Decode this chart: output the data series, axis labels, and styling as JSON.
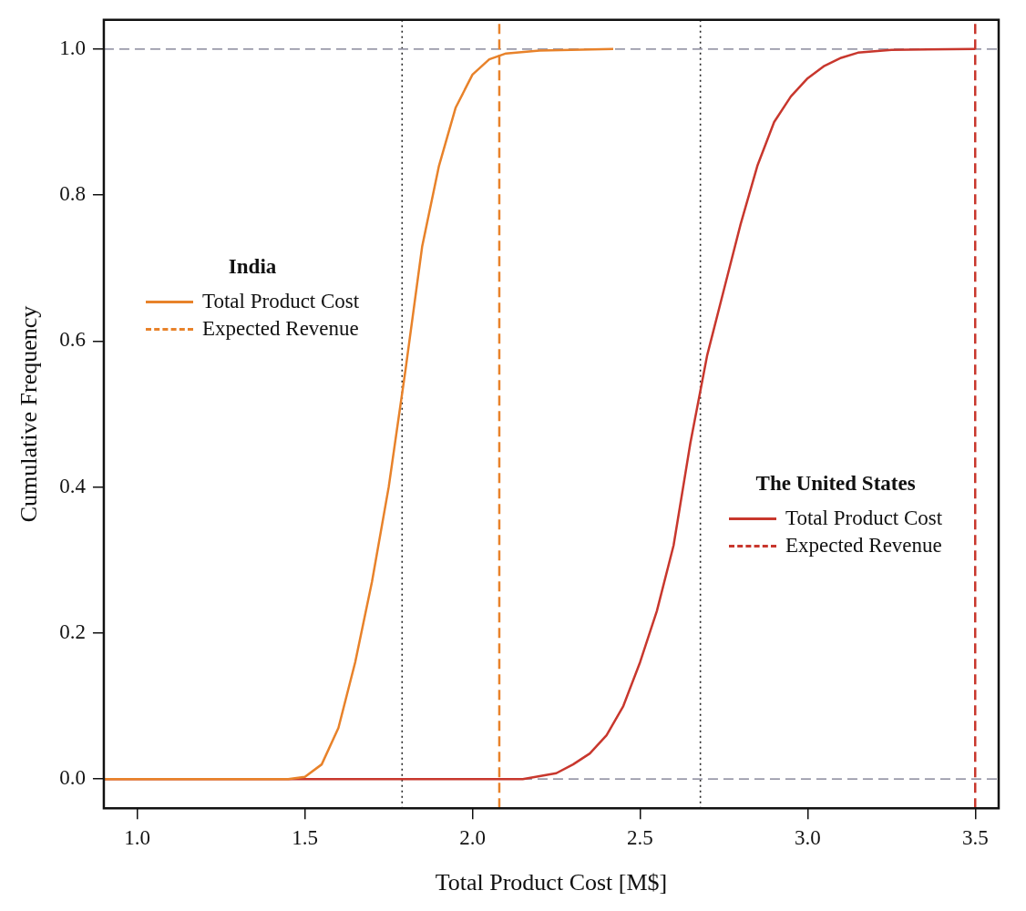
{
  "chart_data": {
    "type": "line",
    "xlabel": "Total Product Cost [M$]",
    "ylabel": "Cumulative Frequency",
    "xlim": [
      0.9,
      3.57
    ],
    "xticks": [
      {
        "value": 1,
        "label": "1.0"
      },
      1.5,
      {
        "value": 2,
        "label": "2.0"
      },
      2.5,
      {
        "value": 3,
        "label": "3.0"
      },
      3.5
    ],
    "ylim": [
      -0.04,
      1.04
    ],
    "yticks": [
      {
        "value": 0,
        "label": "0.0"
      },
      0.2,
      0.4,
      0.6,
      0.8,
      {
        "value": 1,
        "label": "1.0"
      }
    ],
    "grid": false,
    "legend": "center left",
    "marker": "none",
    "annotations": [
      "India",
      "The United States"
    ],
    "series": [
      {
        "name": "Total Product Cost",
        "color": "#e8822a",
        "line_style": "solid",
        "x": [
          0.9,
          1.45,
          1.5,
          1.55,
          1.6,
          1.65,
          1.7,
          1.75,
          1.8,
          1.85,
          1.9,
          1.95,
          2.0,
          2.05,
          2.1,
          2.2,
          2.42
        ],
        "values": [
          0,
          0,
          0.003,
          0.02,
          0.07,
          0.16,
          0.27,
          0.4,
          0.56,
          0.73,
          0.84,
          0.92,
          0.965,
          0.986,
          0.994,
          0.998,
          1
        ]
      },
      {
        "name": "Expected Revenue",
        "color": "#e8822a",
        "line_style": "dashed",
        "x": [
          2.08,
          2.08
        ],
        "values": [
          -0.04,
          1.04
        ]
      },
      {
        "name": "Total Product Cost",
        "color": "#c8372d",
        "line_style": "solid",
        "x": [
          0.9,
          2.15,
          2.25,
          2.3,
          2.35,
          2.4,
          2.45,
          2.5,
          2.55,
          2.6,
          2.65,
          2.7,
          2.75,
          2.8,
          2.85,
          2.9,
          2.95,
          3.0,
          3.05,
          3.1,
          3.15,
          3.25,
          3.5
        ],
        "values": [
          0,
          0,
          0.008,
          0.02,
          0.035,
          0.06,
          0.1,
          0.16,
          0.23,
          0.32,
          0.46,
          0.58,
          0.67,
          0.76,
          0.84,
          0.9,
          0.935,
          0.96,
          0.977,
          0.988,
          0.995,
          0.999,
          1
        ]
      },
      {
        "name": "Expected Revenue",
        "color": "#c8372d",
        "line_style": "dashed",
        "x": [
          3.5,
          3.5
        ],
        "values": [
          -0.04,
          1.04
        ]
      }
    ],
    "ref_lines": [
      {
        "axis": "x",
        "value": 1.79,
        "color": "#222222",
        "line_style": "dotted"
      },
      {
        "axis": "x",
        "value": 2.68,
        "color": "#222222",
        "line_style": "dotted"
      },
      {
        "axis": "y",
        "value": 0,
        "color": "#9a9aaa",
        "line_style": "dashed"
      },
      {
        "axis": "y",
        "value": 1,
        "color": "#9a9aaa",
        "line_style": "dashed"
      }
    ]
  }
}
